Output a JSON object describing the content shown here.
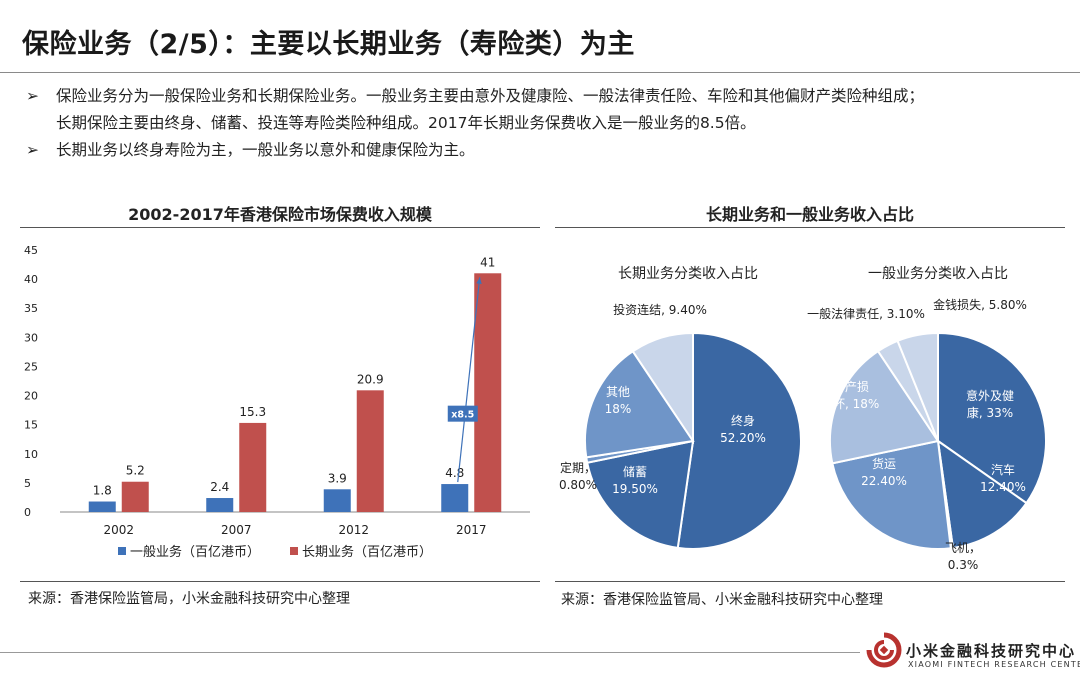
{
  "page": {
    "title": "保险业务（2/5）：主要以长期业务（寿险类）为主",
    "bullets": [
      {
        "marker": "➢",
        "lines": [
          "保险业务分为一般保险业务和长期保险业务。一般业务主要由意外及健康险、一般法律责任险、车险和其他偏财产类险种组成；",
          "长期保险主要由终身、储蓄、投连等寿险类险种组成。2017年长期业务保费收入是一般业务的8.5倍。"
        ]
      },
      {
        "marker": "➢",
        "lines": [
          "长期业务以终身寿险为主，一般业务以意外和健康保险为主。"
        ]
      }
    ],
    "left_source": "来源：香港保险监管局，小米金融科技研究中心整理",
    "right_source": "来源：香港保险监管局、小米金融科技研究中心整理",
    "brand_cn": "小米金融科技研究中心",
    "brand_en": "XIAOMI FINTECH RESEARCH CENTER"
  },
  "colors": {
    "general": "#3e72b9",
    "long": "#c0504d",
    "pie_dark": "#3a67a3",
    "pie_mid": "#6f95c8",
    "pie_light": "#a9bfdf",
    "pie_lighter": "#c9d6ea"
  },
  "chart_data": [
    {
      "type": "bar",
      "title": "2002-2017年香港保险市场保费收入规模",
      "categories": [
        "2002",
        "2007",
        "2012",
        "2017"
      ],
      "series": [
        {
          "name": "一般业务（百亿港币）",
          "values": [
            1.8,
            2.4,
            3.9,
            4.8
          ],
          "labels": [
            "1.8",
            "2.4",
            "3.9",
            "4.8"
          ]
        },
        {
          "name": "长期业务（百亿港币）",
          "values": [
            5.2,
            15.3,
            20.9,
            41
          ],
          "labels": [
            "5.2",
            "15.3",
            "20.9",
            "41"
          ]
        }
      ],
      "ylim": [
        0,
        45
      ],
      "yticks": [
        0,
        5,
        10,
        15,
        20,
        25,
        30,
        35,
        40,
        45
      ],
      "annotation": "x8.5",
      "legend": "bottom",
      "grid": false
    },
    {
      "type": "pie",
      "panel_title": "长期业务和一般业务收入占比",
      "title": "长期业务分类收入占比",
      "slices": [
        {
          "label": "终身",
          "pct": "52.20%",
          "value": 52.2
        },
        {
          "label": "储蓄",
          "pct": "19.50%",
          "value": 19.5
        },
        {
          "label": "定期",
          "pct": "0.80%",
          "value": 0.8
        },
        {
          "label": "其他",
          "pct": "18%",
          "value": 18
        },
        {
          "label": "投资连结",
          "pct": "9.40%",
          "value": 9.4
        }
      ]
    },
    {
      "type": "pie",
      "title": "一般业务分类收入占比",
      "slices": [
        {
          "label": "意外及健康",
          "pct": "33%",
          "value": 33
        },
        {
          "label": "汽车",
          "pct": "12.40%",
          "value": 12.4
        },
        {
          "label": "飞机",
          "pct": "0.3%",
          "value": 0.3
        },
        {
          "label": "货运",
          "pct": "22.40%",
          "value": 22.4
        },
        {
          "label": "财产损坏",
          "pct": "18%",
          "value": 18
        },
        {
          "label": "一般法律责任",
          "pct": "3.10%",
          "value": 3.1
        },
        {
          "label": "金钱损失",
          "pct": "5.80%",
          "value": 5.8
        }
      ]
    }
  ]
}
